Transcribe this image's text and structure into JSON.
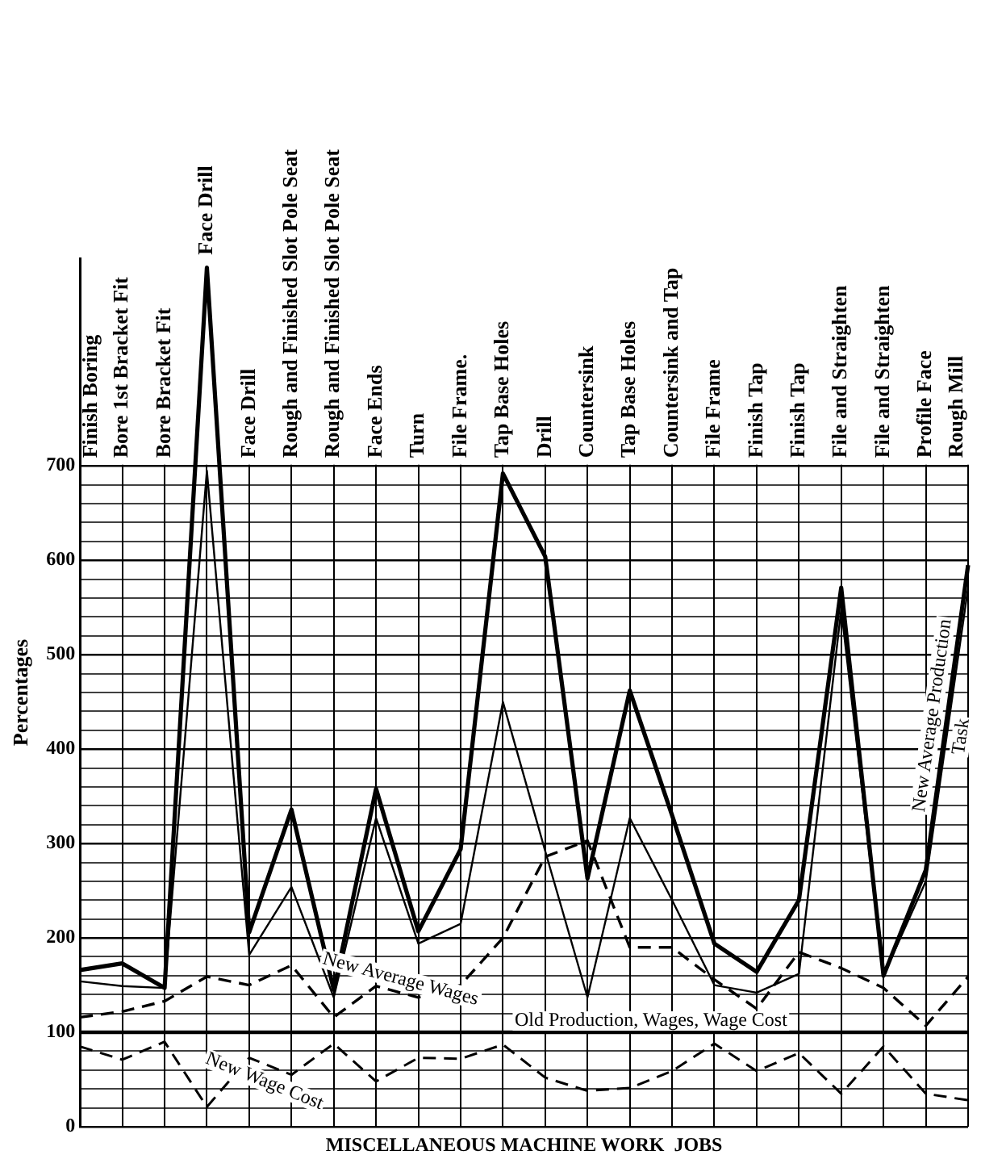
{
  "chart_data": {
    "type": "line",
    "xlabel": "MISCELLANEOUS MACHINE WORK  JOBS",
    "ylabel": "Percentages",
    "categories": [
      "Finish Boring",
      "Bore 1st Bracket Fit",
      "Bore Bracket Fit",
      "Face Drill",
      "Face Drill",
      "Rough and Finished Slot Pole Seat",
      "Rough and Finished Slot Pole Seat",
      "Face Ends",
      "Turn",
      "File Frame.",
      "Tap Base Holes",
      "Drill",
      "Countersink",
      "Tap Base Holes",
      "Countersink and Tap",
      "File Frame",
      "Finish Tap",
      "Finish Tap",
      "File and Straighten",
      "File and Straighten",
      "Profile Face",
      "Rough Mill"
    ],
    "series": [
      {
        "name": "New Average Production",
        "color": "#000000",
        "line_style": "solid",
        "values": [
          166,
          173,
          147,
          910,
          206,
          336,
          145,
          358,
          207,
          294,
          692,
          604,
          263,
          462,
          330,
          194,
          164,
          240,
          571,
          160,
          272,
          595
        ]
      },
      {
        "name": "Task",
        "color": "#000000",
        "line_style": "solid",
        "values": [
          154,
          149,
          147,
          695,
          182,
          254,
          137,
          327,
          194,
          215,
          450,
          292,
          137,
          327,
          240,
          150,
          142,
          162,
          548,
          160,
          260,
          571
        ]
      },
      {
        "name": "New Average Wages",
        "color": "#000000",
        "line_style": "dashed",
        "values": [
          116,
          122,
          133,
          159,
          150,
          171,
          116,
          149,
          137,
          150,
          200,
          286,
          303,
          190,
          190,
          156,
          125,
          185,
          168,
          147,
          107,
          159
        ]
      },
      {
        "name": "Old Production, Wages, Wage Cost",
        "color": "#000000",
        "line_style": "solid",
        "values": [
          100,
          100,
          100,
          100,
          100,
          100,
          100,
          100,
          100,
          100,
          100,
          100,
          100,
          100,
          100,
          100,
          100,
          100,
          100,
          100,
          100,
          100
        ]
      },
      {
        "name": "New Wage Cost",
        "color": "#000000",
        "line_style": "dashed",
        "values": [
          85,
          71,
          90,
          21,
          73,
          55,
          88,
          48,
          73,
          72,
          87,
          52,
          38,
          41,
          59,
          88,
          59,
          78,
          35,
          85,
          35,
          28
        ]
      }
    ],
    "ylim": [
      0,
      920
    ],
    "yticks": [
      0,
      {
        "value": 20,
        "label": null
      },
      {
        "value": 40,
        "label": null
      },
      {
        "value": 60,
        "label": null
      },
      {
        "value": 80,
        "label": null
      },
      100,
      {
        "value": 120,
        "label": null
      },
      {
        "value": 140,
        "label": null
      },
      {
        "value": 160,
        "label": null
      },
      {
        "value": 180,
        "label": null
      },
      200,
      {
        "value": 220,
        "label": null
      },
      {
        "value": 240,
        "label": null
      },
      {
        "value": 260,
        "label": null
      },
      {
        "value": 280,
        "label": null
      },
      300,
      {
        "value": 320,
        "label": null
      },
      {
        "value": 340,
        "label": null
      },
      {
        "value": 360,
        "label": null
      },
      {
        "value": 380,
        "label": null
      },
      400,
      {
        "value": 420,
        "label": null
      },
      {
        "value": 440,
        "label": null
      },
      {
        "value": 460,
        "label": null
      },
      {
        "value": 480,
        "label": null
      },
      500,
      {
        "value": 520,
        "label": null
      },
      {
        "value": 540,
        "label": null
      },
      {
        "value": 560,
        "label": null
      },
      {
        "value": 580,
        "label": null
      },
      600,
      {
        "value": 620,
        "label": null
      },
      {
        "value": 640,
        "label": null
      },
      {
        "value": 660,
        "label": null
      },
      {
        "value": 680,
        "label": null
      },
      700
    ],
    "grid": true,
    "legend": false,
    "marker": "none"
  }
}
